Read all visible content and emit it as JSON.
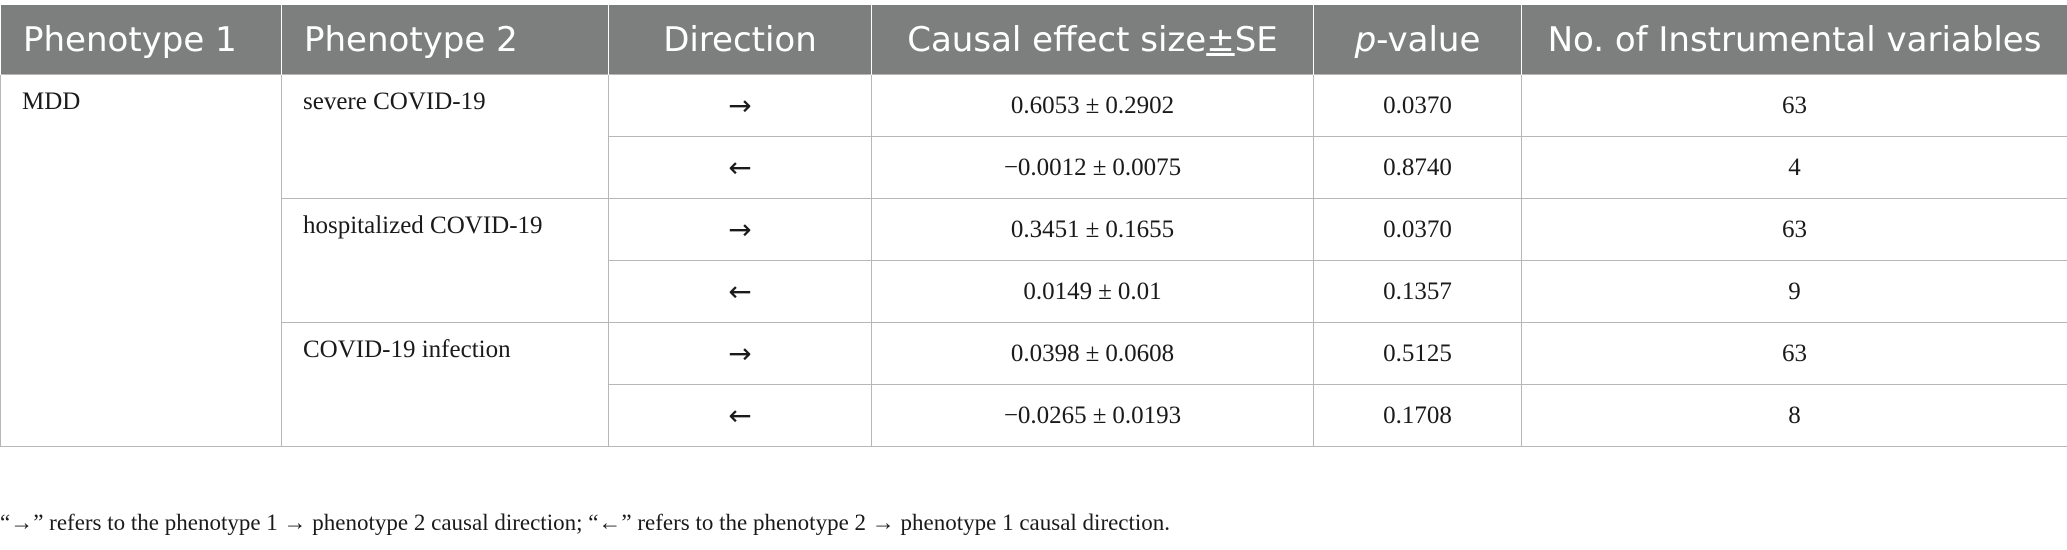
{
  "table": {
    "headers": {
      "phenotype1": "Phenotype 1",
      "phenotype2": "Phenotype 2",
      "direction": "Direction",
      "effect_prefix": "Causal effect size",
      "effect_pm": "±",
      "effect_suffix": "SE",
      "pvalue_italic": "p",
      "pvalue_rest": "-value",
      "iv_count": "No. of Instrumental variables"
    },
    "phenotype1_value": "MDD",
    "groups": [
      {
        "phenotype2": "severe COVID-19",
        "rows": [
          {
            "direction": "→",
            "effect": "0.6053",
            "se": "0.2902",
            "pvalue": "0.0370",
            "ivs": "63"
          },
          {
            "direction": "←",
            "effect": "−0.0012",
            "se": "0.0075",
            "pvalue": "0.8740",
            "ivs": "4"
          }
        ]
      },
      {
        "phenotype2": "hospitalized COVID-19",
        "rows": [
          {
            "direction": "→",
            "effect": "0.3451",
            "se": "0.1655",
            "pvalue": "0.0370",
            "ivs": "63"
          },
          {
            "direction": "←",
            "effect": "0.0149",
            "se": "0.01",
            "pvalue": "0.1357",
            "ivs": "9"
          }
        ]
      },
      {
        "phenotype2": "COVID-19 infection",
        "rows": [
          {
            "direction": "→",
            "effect": "0.0398",
            "se": "0.0608",
            "pvalue": "0.5125",
            "ivs": "63"
          },
          {
            "direction": "←",
            "effect": "−0.0265",
            "se": "0.0193",
            "pvalue": "0.1708",
            "ivs": "8"
          }
        ]
      }
    ],
    "pm_symbol": "±"
  },
  "footnote": "“→” refers to the phenotype 1 → phenotype 2 causal direction; “←” refers to the phenotype 2 → phenotype 1 causal direction.",
  "colors": {
    "header_bg": "#7d7e7e",
    "header_text": "#ffffff",
    "grid": "#b7b7b7"
  }
}
